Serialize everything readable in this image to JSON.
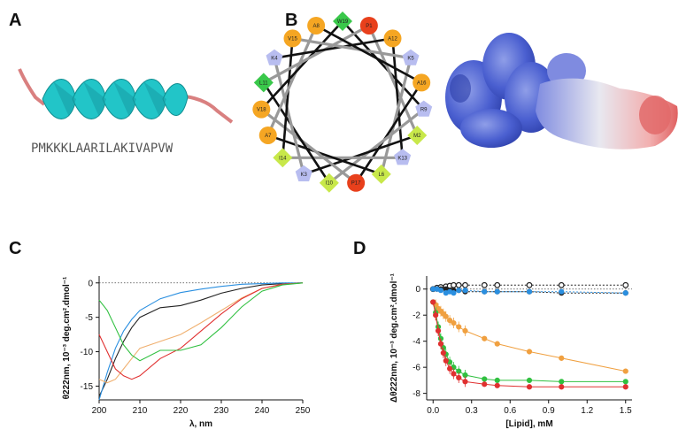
{
  "panels": {
    "a": "A",
    "b": "B",
    "c": "C",
    "d": "D"
  },
  "peptide": {
    "sequence": "PMKKKLAARILAKIVAPVW"
  },
  "colors": {
    "helix": "#22c5c8",
    "coil": "#d98080",
    "hydrophobic": "#f5a623",
    "aromatic": "#39c84a",
    "charged_pos": "#b8bdf0",
    "special": "#e8401c",
    "neutral": "#c8e84a"
  },
  "wheel": {
    "residues": [
      {
        "label": "W19",
        "kind": "aromatic"
      },
      {
        "label": "P1",
        "kind": "special"
      },
      {
        "label": "A12",
        "kind": "hydrophobic"
      },
      {
        "label": "K5",
        "kind": "charged_pos"
      },
      {
        "label": "A16",
        "kind": "hydrophobic"
      },
      {
        "label": "R9",
        "kind": "charged_pos"
      },
      {
        "label": "M2",
        "kind": "neutral"
      },
      {
        "label": "K13",
        "kind": "charged_pos"
      },
      {
        "label": "L6",
        "kind": "neutral"
      },
      {
        "label": "P17",
        "kind": "special"
      },
      {
        "label": "I10",
        "kind": "neutral"
      },
      {
        "label": "K3",
        "kind": "charged_pos"
      },
      {
        "label": "I14",
        "kind": "neutral"
      },
      {
        "label": "A7",
        "kind": "hydrophobic"
      },
      {
        "label": "V18",
        "kind": "hydrophobic"
      },
      {
        "label": "L11",
        "kind": "aromatic"
      },
      {
        "label": "K4",
        "kind": "charged_pos"
      },
      {
        "label": "V15",
        "kind": "hydrophobic"
      },
      {
        "label": "A8",
        "kind": "hydrophobic"
      }
    ]
  },
  "chart_data": [
    {
      "id": "C",
      "type": "line",
      "xlabel": "λ, nm",
      "ylabel": "θ222nm, 10⁻³ deg.cm².dmol⁻¹",
      "xlim": [
        200,
        250
      ],
      "ylim": [
        -17,
        1
      ],
      "xticks": [
        200,
        210,
        220,
        230,
        240,
        250
      ],
      "yticks": [
        0,
        -5,
        -10,
        -15
      ],
      "grid": false,
      "series": [
        {
          "color": "#222222",
          "x": [
            200,
            202,
            204,
            206,
            208,
            210,
            215,
            220,
            225,
            230,
            235,
            240,
            245,
            250
          ],
          "y": [
            -16.5,
            -14,
            -11,
            -8.5,
            -6.5,
            -5,
            -3.6,
            -3.3,
            -2.5,
            -1.5,
            -0.8,
            -0.3,
            -0.1,
            0
          ]
        },
        {
          "color": "#2a8fe0",
          "x": [
            200,
            202,
            204,
            206,
            208,
            210,
            215,
            220,
            225,
            230,
            235,
            240,
            245,
            250
          ],
          "y": [
            -17,
            -13,
            -9.5,
            -7,
            -5.3,
            -4,
            -2.3,
            -1.4,
            -0.9,
            -0.5,
            -0.2,
            -0.1,
            0,
            0
          ]
        },
        {
          "color": "#f0b070",
          "x": [
            200,
            202,
            204,
            206,
            208,
            210,
            215,
            220,
            225,
            230,
            235,
            240,
            245,
            250
          ],
          "y": [
            -14,
            -14.5,
            -14,
            -12.5,
            -11,
            -9.5,
            -8.5,
            -7.5,
            -5.8,
            -4,
            -2.2,
            -0.8,
            -0.2,
            0
          ]
        },
        {
          "color": "#e03030",
          "x": [
            200,
            202,
            204,
            206,
            208,
            210,
            215,
            220,
            225,
            230,
            235,
            240,
            245,
            250
          ],
          "y": [
            -7.5,
            -10,
            -12.5,
            -13.5,
            -14,
            -13.5,
            -11,
            -9.5,
            -7,
            -4.5,
            -2.3,
            -0.8,
            -0.2,
            0
          ]
        },
        {
          "color": "#30c040",
          "x": [
            200,
            202,
            204,
            206,
            208,
            210,
            215,
            220,
            225,
            230,
            235,
            240,
            245,
            250
          ],
          "y": [
            -2.5,
            -4,
            -6.5,
            -9,
            -10.5,
            -11.3,
            -9.8,
            -9.8,
            -9,
            -6.5,
            -3.5,
            -1.2,
            -0.3,
            0
          ]
        }
      ]
    },
    {
      "id": "D",
      "type": "scatter",
      "xlabel": "[Lipid], mM",
      "ylabel": "Δθ222nm, 10⁻³ deg.cm².dmol⁻¹",
      "xlim": [
        -0.05,
        1.55
      ],
      "ylim": [
        -8.5,
        1
      ],
      "xticks": [
        0.0,
        0.3,
        0.6,
        0.9,
        1.2,
        1.5
      ],
      "yticks": [
        0,
        -2,
        -4,
        -6,
        -8
      ],
      "grid": false,
      "series": [
        {
          "marker": "open-circle",
          "color": "#222222",
          "x": [
            0,
            0.03,
            0.06,
            0.1,
            0.13,
            0.16,
            0.2,
            0.25,
            0.4,
            0.5,
            0.75,
            1.0,
            1.5
          ],
          "y": [
            0,
            0.1,
            0.15,
            0.2,
            0.25,
            0.3,
            0.3,
            0.3,
            0.3,
            0.3,
            0.3,
            0.3,
            0.3
          ],
          "fit": "flat"
        },
        {
          "marker": "filled-circle",
          "color": "#222222",
          "x": [
            0,
            0.03,
            0.06,
            0.1,
            0.13,
            0.16,
            0.2,
            0.25,
            0.4,
            0.5,
            0.75,
            1.0,
            1.5
          ],
          "y": [
            0,
            0,
            0,
            0,
            -0.1,
            -0.1,
            -0.1,
            -0.2,
            -0.2,
            -0.2,
            -0.2,
            -0.3,
            -0.3
          ],
          "fit": "flat"
        },
        {
          "marker": "filled-circle",
          "color": "#2a8fe0",
          "x": [
            0,
            0.03,
            0.06,
            0.1,
            0.13,
            0.16,
            0.2,
            0.25,
            0.4,
            0.5,
            0.75,
            1.0,
            1.5
          ],
          "y": [
            0,
            0,
            -0.1,
            -0.3,
            -0.2,
            -0.3,
            -0.1,
            -0.1,
            -0.2,
            -0.2,
            -0.2,
            -0.2,
            -0.3
          ],
          "fit": "flat"
        },
        {
          "marker": "filled-circle",
          "color": "#f0a040",
          "x": [
            0,
            0.02,
            0.04,
            0.06,
            0.08,
            0.1,
            0.13,
            0.16,
            0.2,
            0.25,
            0.4,
            0.5,
            0.75,
            1.0,
            1.5
          ],
          "y": [
            -1.0,
            -1.2,
            -1.5,
            -1.7,
            -1.9,
            -2.1,
            -2.4,
            -2.6,
            -2.9,
            -3.2,
            -3.8,
            -4.2,
            -4.8,
            -5.3,
            -6.3
          ],
          "fit": "hyperbolic"
        },
        {
          "marker": "filled-circle",
          "color": "#30c040",
          "x": [
            0,
            0.02,
            0.04,
            0.06,
            0.08,
            0.1,
            0.13,
            0.16,
            0.2,
            0.25,
            0.4,
            0.5,
            0.75,
            1.0,
            1.5
          ],
          "y": [
            -1.0,
            -1.8,
            -2.9,
            -3.8,
            -4.5,
            -5.0,
            -5.6,
            -6.0,
            -6.3,
            -6.6,
            -6.9,
            -7.0,
            -7.0,
            -7.1,
            -7.1
          ],
          "fit": "hyperbolic"
        },
        {
          "marker": "filled-circle",
          "color": "#e03030",
          "x": [
            0,
            0.02,
            0.04,
            0.06,
            0.08,
            0.1,
            0.13,
            0.16,
            0.2,
            0.25,
            0.4,
            0.5,
            0.75,
            1.0,
            1.5
          ],
          "y": [
            -1.0,
            -2.0,
            -3.2,
            -4.2,
            -4.9,
            -5.5,
            -6.1,
            -6.5,
            -6.8,
            -7.1,
            -7.3,
            -7.4,
            -7.5,
            -7.5,
            -7.5
          ],
          "fit": "hyperbolic"
        }
      ]
    }
  ]
}
